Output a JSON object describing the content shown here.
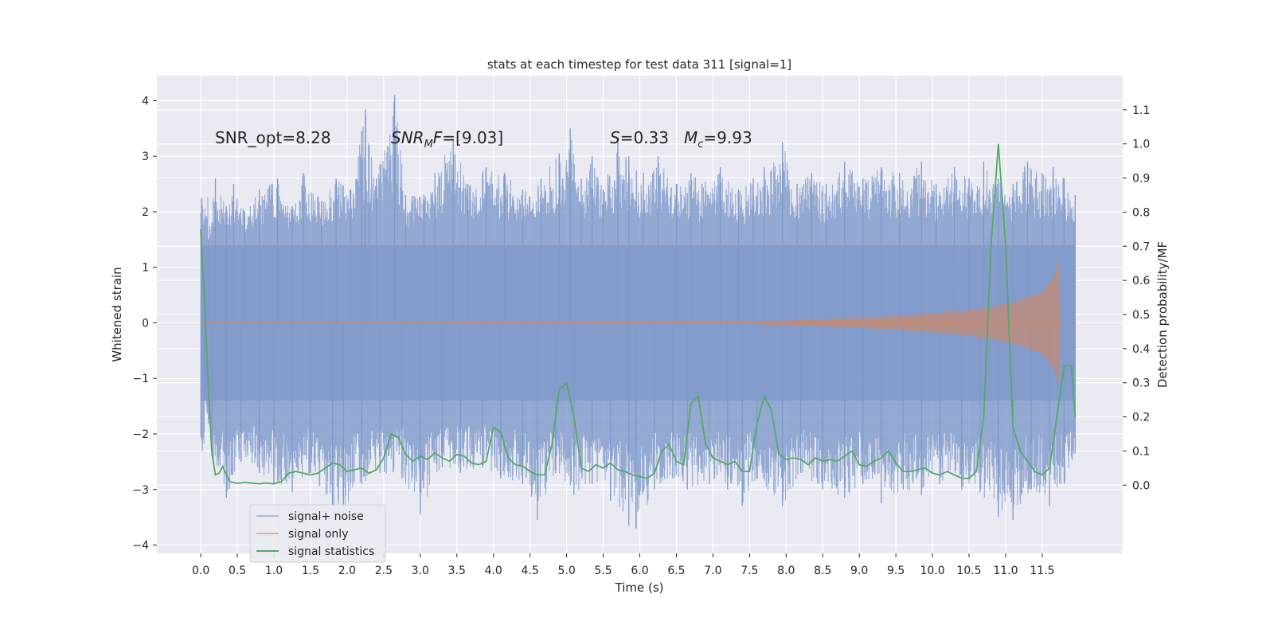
{
  "chart_data": {
    "type": "line",
    "title": "stats at each timestep for test data 311 [signal=1]",
    "xlabel": "Time (s)",
    "ylabel": "Whitened strain",
    "ylabel_right": "Detection probability/MF",
    "xlim": [
      -0.6,
      12.6
    ],
    "ylim": [
      -4.15,
      4.45
    ],
    "ylim_right": [
      -0.2,
      1.2
    ],
    "x_ticks": [
      0.0,
      0.5,
      1.0,
      1.5,
      2.0,
      2.5,
      3.0,
      3.5,
      4.0,
      4.5,
      5.0,
      5.5,
      6.0,
      6.5,
      7.0,
      7.5,
      8.0,
      8.5,
      9.0,
      9.5,
      10.0,
      10.5,
      11.0,
      11.5
    ],
    "x_tick_labels": [
      "0.0",
      "0.5",
      "1.0",
      "1.5",
      "2.0",
      "2.5",
      "3.0",
      "3.5",
      "4.0",
      "4.5",
      "5.0",
      "5.5",
      "6.0",
      "6.5",
      "7.0",
      "7.5",
      "8.0",
      "8.5",
      "9.0",
      "9.5",
      "10.0",
      "10.5",
      "11.0",
      "11.5"
    ],
    "y_ticks": [
      -4,
      -3,
      -2,
      -1,
      0,
      1,
      2,
      3,
      4
    ],
    "y_tick_labels": [
      "−4",
      "−3",
      "−2",
      "−1",
      "0",
      "1",
      "2",
      "3",
      "4"
    ],
    "y_right_ticks": [
      0.0,
      0.1,
      0.2,
      0.3,
      0.4,
      0.5,
      0.6,
      0.7,
      0.8,
      0.9,
      1.0,
      1.1
    ],
    "y_right_tick_labels": [
      "0.0",
      "0.1",
      "0.2",
      "0.3",
      "0.4",
      "0.5",
      "0.6",
      "0.7",
      "0.8",
      "0.9",
      "1.0",
      "1.1"
    ],
    "grid": true,
    "legend_position": "lower-left",
    "annotations": [
      "SNR_opt=8.28",
      "SNR_MF=[9.03]",
      "S=0.33",
      "M_c=9.93"
    ],
    "series": [
      {
        "name": "signal+ noise",
        "color": "#7e99c9",
        "axis": "left",
        "kind": "noise-band",
        "t_range": [
          0.0,
          11.95
        ],
        "core_amplitude": 1.4,
        "peaks_top": [
          [
            0.1,
            1.5
          ],
          [
            0.2,
            2.6
          ],
          [
            0.35,
            2.1
          ],
          [
            0.45,
            2.5
          ],
          [
            0.6,
            2.0
          ],
          [
            0.8,
            2.4
          ],
          [
            1.05,
            2.6
          ],
          [
            1.25,
            2.1
          ],
          [
            1.4,
            2.7
          ],
          [
            1.65,
            2.2
          ],
          [
            1.85,
            2.6
          ],
          [
            2.05,
            2.4
          ],
          [
            2.2,
            3.45
          ],
          [
            2.25,
            3.85
          ],
          [
            2.3,
            3.2
          ],
          [
            2.4,
            2.6
          ],
          [
            2.65,
            4.1
          ],
          [
            2.8,
            2.3
          ],
          [
            3.05,
            2.3
          ],
          [
            3.2,
            2.7
          ],
          [
            3.45,
            3.3
          ],
          [
            3.65,
            2.5
          ],
          [
            3.9,
            2.8
          ],
          [
            4.15,
            2.7
          ],
          [
            4.4,
            2.4
          ],
          [
            4.65,
            2.6
          ],
          [
            4.9,
            3.05
          ],
          [
            5.05,
            3.5
          ],
          [
            5.2,
            2.6
          ],
          [
            5.35,
            3.0
          ],
          [
            5.5,
            2.4
          ],
          [
            5.7,
            3.3
          ],
          [
            5.85,
            3.0
          ],
          [
            6.05,
            2.7
          ],
          [
            6.25,
            3.0
          ],
          [
            6.5,
            2.5
          ],
          [
            6.7,
            2.7
          ],
          [
            6.85,
            2.5
          ],
          [
            7.1,
            2.8
          ],
          [
            7.35,
            2.4
          ],
          [
            7.55,
            2.6
          ],
          [
            7.7,
            2.8
          ],
          [
            7.95,
            3.25
          ],
          [
            8.15,
            2.5
          ],
          [
            8.35,
            2.7
          ],
          [
            8.55,
            2.5
          ],
          [
            8.8,
            2.9
          ],
          [
            9.05,
            2.6
          ],
          [
            9.3,
            2.8
          ],
          [
            9.55,
            2.7
          ],
          [
            9.85,
            2.9
          ],
          [
            10.05,
            2.5
          ],
          [
            10.3,
            2.8
          ],
          [
            10.5,
            2.6
          ],
          [
            10.7,
            2.9
          ],
          [
            10.9,
            2.6
          ],
          [
            11.1,
            2.5
          ],
          [
            11.3,
            2.9
          ],
          [
            11.5,
            2.7
          ],
          [
            11.65,
            2.8
          ],
          [
            11.8,
            2.6
          ],
          [
            11.95,
            2.3
          ]
        ],
        "peaks_bottom": [
          [
            0.05,
            -1.2
          ],
          [
            0.15,
            -2.4
          ],
          [
            0.35,
            -3.15
          ],
          [
            0.55,
            -2.5
          ],
          [
            0.8,
            -2.7
          ],
          [
            1.0,
            -2.9
          ],
          [
            1.25,
            -3.05
          ],
          [
            1.5,
            -2.7
          ],
          [
            1.8,
            -3.3
          ],
          [
            1.95,
            -3.4
          ],
          [
            2.2,
            -2.9
          ],
          [
            2.45,
            -2.7
          ],
          [
            2.75,
            -2.8
          ],
          [
            3.0,
            -3.45
          ],
          [
            3.3,
            -2.6
          ],
          [
            3.55,
            -2.7
          ],
          [
            3.85,
            -2.6
          ],
          [
            4.1,
            -2.8
          ],
          [
            4.4,
            -2.9
          ],
          [
            4.6,
            -3.55
          ],
          [
            4.85,
            -2.7
          ],
          [
            5.1,
            -3.1
          ],
          [
            5.35,
            -2.9
          ],
          [
            5.6,
            -3.2
          ],
          [
            5.85,
            -3.65
          ],
          [
            5.95,
            -3.7
          ],
          [
            6.2,
            -3.0
          ],
          [
            6.45,
            -2.8
          ],
          [
            6.65,
            -3.0
          ],
          [
            6.95,
            -2.9
          ],
          [
            7.2,
            -3.0
          ],
          [
            7.4,
            -3.3
          ],
          [
            7.6,
            -2.8
          ],
          [
            7.95,
            -3.3
          ],
          [
            8.2,
            -2.7
          ],
          [
            8.5,
            -3.0
          ],
          [
            8.8,
            -3.15
          ],
          [
            9.05,
            -2.9
          ],
          [
            9.3,
            -3.25
          ],
          [
            9.6,
            -3.0
          ],
          [
            9.85,
            -3.1
          ],
          [
            10.1,
            -2.9
          ],
          [
            10.4,
            -3.0
          ],
          [
            10.65,
            -3.05
          ],
          [
            10.9,
            -3.5
          ],
          [
            11.1,
            -3.55
          ],
          [
            11.35,
            -3.0
          ],
          [
            11.6,
            -3.3
          ],
          [
            11.8,
            -2.9
          ],
          [
            11.95,
            -2.35
          ]
        ]
      },
      {
        "name": "signal only",
        "color": "#dd8452",
        "axis": "left",
        "kind": "chirp-envelope",
        "t_range": [
          0.0,
          11.75
        ],
        "envelope": [
          [
            0.0,
            0.0
          ],
          [
            7.5,
            0.02
          ],
          [
            8.5,
            0.06
          ],
          [
            9.5,
            0.12
          ],
          [
            10.3,
            0.2
          ],
          [
            10.8,
            0.28
          ],
          [
            11.2,
            0.4
          ],
          [
            11.5,
            0.55
          ],
          [
            11.65,
            0.8
          ],
          [
            11.72,
            1.15
          ],
          [
            11.75,
            0.0
          ]
        ]
      },
      {
        "name": "signal statistics",
        "color": "#55a868",
        "axis": "right",
        "kind": "line",
        "points": [
          [
            0.0,
            0.75
          ],
          [
            0.05,
            0.55
          ],
          [
            0.1,
            0.3
          ],
          [
            0.15,
            0.1
          ],
          [
            0.2,
            0.03
          ],
          [
            0.25,
            0.035
          ],
          [
            0.3,
            0.055
          ],
          [
            0.35,
            0.03
          ],
          [
            0.4,
            0.01
          ],
          [
            0.5,
            0.005
          ],
          [
            0.6,
            0.008
          ],
          [
            0.7,
            0.006
          ],
          [
            0.8,
            0.004
          ],
          [
            0.9,
            0.006
          ],
          [
            1.0,
            0.004
          ],
          [
            1.1,
            0.01
          ],
          [
            1.2,
            0.035
          ],
          [
            1.3,
            0.04
          ],
          [
            1.4,
            0.035
          ],
          [
            1.5,
            0.03
          ],
          [
            1.6,
            0.035
          ],
          [
            1.7,
            0.05
          ],
          [
            1.8,
            0.065
          ],
          [
            1.9,
            0.06
          ],
          [
            2.0,
            0.04
          ],
          [
            2.1,
            0.045
          ],
          [
            2.2,
            0.05
          ],
          [
            2.3,
            0.035
          ],
          [
            2.4,
            0.045
          ],
          [
            2.5,
            0.08
          ],
          [
            2.6,
            0.15
          ],
          [
            2.7,
            0.14
          ],
          [
            2.8,
            0.09
          ],
          [
            2.9,
            0.07
          ],
          [
            3.0,
            0.085
          ],
          [
            3.1,
            0.075
          ],
          [
            3.2,
            0.095
          ],
          [
            3.3,
            0.08
          ],
          [
            3.4,
            0.07
          ],
          [
            3.5,
            0.09
          ],
          [
            3.6,
            0.085
          ],
          [
            3.7,
            0.065
          ],
          [
            3.8,
            0.06
          ],
          [
            3.9,
            0.07
          ],
          [
            4.0,
            0.17
          ],
          [
            4.1,
            0.155
          ],
          [
            4.2,
            0.08
          ],
          [
            4.3,
            0.06
          ],
          [
            4.4,
            0.055
          ],
          [
            4.5,
            0.04
          ],
          [
            4.6,
            0.03
          ],
          [
            4.7,
            0.03
          ],
          [
            4.8,
            0.12
          ],
          [
            4.9,
            0.28
          ],
          [
            5.0,
            0.3
          ],
          [
            5.1,
            0.2
          ],
          [
            5.2,
            0.05
          ],
          [
            5.3,
            0.04
          ],
          [
            5.4,
            0.06
          ],
          [
            5.5,
            0.05
          ],
          [
            5.6,
            0.065
          ],
          [
            5.7,
            0.045
          ],
          [
            5.8,
            0.04
          ],
          [
            5.9,
            0.03
          ],
          [
            6.0,
            0.025
          ],
          [
            6.1,
            0.02
          ],
          [
            6.2,
            0.035
          ],
          [
            6.3,
            0.1
          ],
          [
            6.4,
            0.12
          ],
          [
            6.5,
            0.07
          ],
          [
            6.6,
            0.06
          ],
          [
            6.7,
            0.24
          ],
          [
            6.8,
            0.26
          ],
          [
            6.9,
            0.12
          ],
          [
            7.0,
            0.08
          ],
          [
            7.1,
            0.07
          ],
          [
            7.2,
            0.06
          ],
          [
            7.3,
            0.07
          ],
          [
            7.4,
            0.04
          ],
          [
            7.5,
            0.04
          ],
          [
            7.6,
            0.18
          ],
          [
            7.7,
            0.26
          ],
          [
            7.8,
            0.22
          ],
          [
            7.9,
            0.09
          ],
          [
            8.0,
            0.075
          ],
          [
            8.1,
            0.08
          ],
          [
            8.2,
            0.075
          ],
          [
            8.3,
            0.06
          ],
          [
            8.4,
            0.08
          ],
          [
            8.5,
            0.07
          ],
          [
            8.6,
            0.075
          ],
          [
            8.7,
            0.07
          ],
          [
            8.8,
            0.085
          ],
          [
            8.9,
            0.1
          ],
          [
            9.0,
            0.06
          ],
          [
            9.1,
            0.055
          ],
          [
            9.2,
            0.07
          ],
          [
            9.3,
            0.08
          ],
          [
            9.4,
            0.1
          ],
          [
            9.5,
            0.065
          ],
          [
            9.6,
            0.04
          ],
          [
            9.7,
            0.04
          ],
          [
            9.8,
            0.045
          ],
          [
            9.9,
            0.05
          ],
          [
            10.0,
            0.035
          ],
          [
            10.1,
            0.03
          ],
          [
            10.2,
            0.04
          ],
          [
            10.3,
            0.03
          ],
          [
            10.4,
            0.02
          ],
          [
            10.5,
            0.02
          ],
          [
            10.6,
            0.04
          ],
          [
            10.7,
            0.2
          ],
          [
            10.8,
            0.7
          ],
          [
            10.9,
            1.0
          ],
          [
            11.0,
            0.7
          ],
          [
            11.1,
            0.17
          ],
          [
            11.2,
            0.1
          ],
          [
            11.3,
            0.07
          ],
          [
            11.4,
            0.04
          ],
          [
            11.5,
            0.03
          ],
          [
            11.6,
            0.05
          ],
          [
            11.7,
            0.2
          ],
          [
            11.8,
            0.35
          ],
          [
            11.9,
            0.35
          ],
          [
            11.95,
            0.2
          ]
        ]
      }
    ]
  }
}
